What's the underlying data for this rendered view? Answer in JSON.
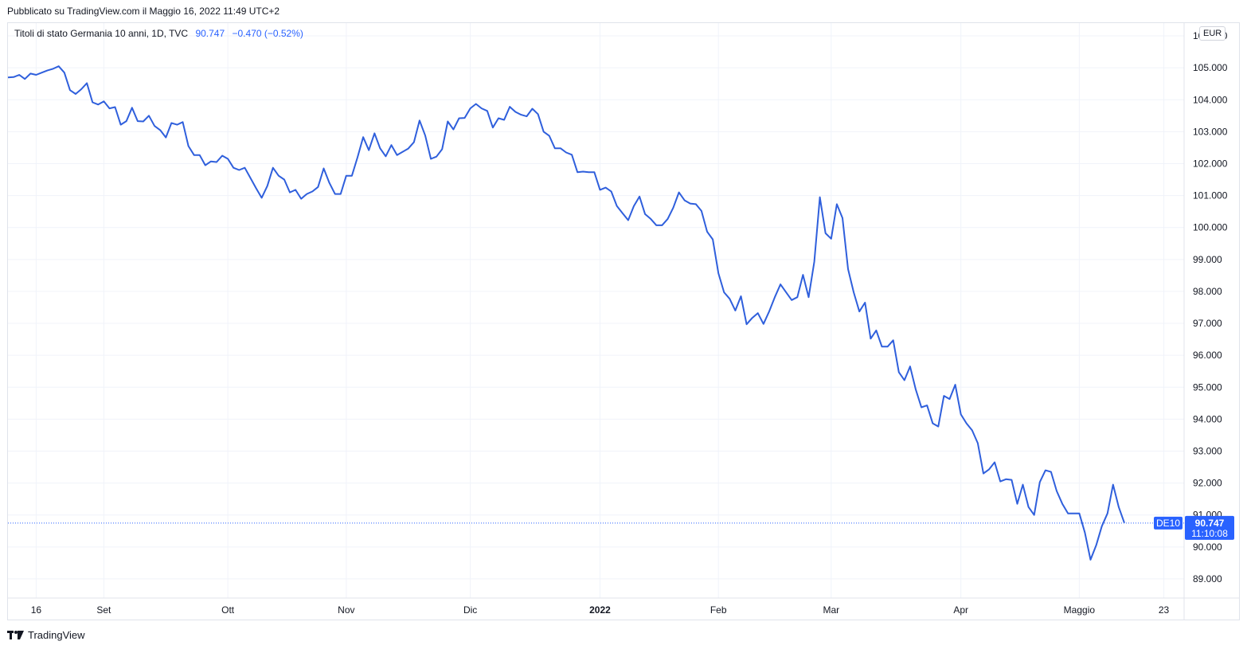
{
  "header": {
    "published": "Pubblicato su TradingView.com il Maggio 16, 2022 11:49 UTC+2"
  },
  "legend": {
    "title": "Titoli di stato Germania 10 anni, 1D, TVC",
    "last": "90.747",
    "change": "−0.470 (−0.52%)"
  },
  "currency": "EUR",
  "price_tag": {
    "symbol": "DE10",
    "price": "90.747",
    "countdown": "11:10:08"
  },
  "footer": {
    "brand": "TradingView"
  },
  "colors": {
    "line": "#2f5fdc",
    "tag": "#2962ff",
    "grid": "#f0f3fa"
  },
  "chart_data": {
    "type": "line",
    "title": "Titoli di stato Germania 10 anni, 1D, TVC",
    "xlabel": "",
    "ylabel": "",
    "ylim": [
      88.4,
      106.4
    ],
    "grid": true,
    "y_ticks": [
      "106.000",
      "105.000",
      "104.000",
      "103.000",
      "102.000",
      "101.000",
      "100.000",
      "99.000",
      "98.000",
      "97.000",
      "96.000",
      "95.000",
      "94.000",
      "93.000",
      "92.000",
      "91.000",
      "90.000",
      "89.000"
    ],
    "y_tick_values": [
      106,
      105,
      104,
      103,
      102,
      101,
      100,
      99,
      98,
      97,
      96,
      95,
      94,
      93,
      92,
      91,
      90,
      89
    ],
    "x_ticks": [
      {
        "label": "16",
        "date": "2021-08-16",
        "bold": false
      },
      {
        "label": "Set",
        "date": "2021-09-01",
        "bold": false
      },
      {
        "label": "Ott",
        "date": "2021-10-01",
        "bold": false
      },
      {
        "label": "Nov",
        "date": "2021-11-01",
        "bold": false
      },
      {
        "label": "Dic",
        "date": "2021-12-01",
        "bold": false
      },
      {
        "label": "2022",
        "date": "2022-01-03",
        "bold": true
      },
      {
        "label": "Feb",
        "date": "2022-02-01",
        "bold": false
      },
      {
        "label": "Mar",
        "date": "2022-03-01",
        "bold": false
      },
      {
        "label": "Apr",
        "date": "2022-04-01",
        "bold": false
      },
      {
        "label": "Maggio",
        "date": "2022-05-02",
        "bold": false
      },
      {
        "label": "23",
        "date": "2022-05-23",
        "bold": false
      }
    ],
    "x_range": [
      "2021-08-10",
      "2022-05-30"
    ],
    "last_value": 90.747,
    "series": [
      {
        "name": "DE10",
        "points": [
          [
            "2021-08-09",
            104.7
          ],
          [
            "2021-08-10",
            104.71
          ],
          [
            "2021-08-11",
            104.78
          ],
          [
            "2021-08-12",
            104.65
          ],
          [
            "2021-08-13",
            104.82
          ],
          [
            "2021-08-16",
            104.78
          ],
          [
            "2021-08-17",
            104.85
          ],
          [
            "2021-08-18",
            104.92
          ],
          [
            "2021-08-19",
            104.97
          ],
          [
            "2021-08-20",
            105.05
          ],
          [
            "2021-08-23",
            104.85
          ],
          [
            "2021-08-24",
            104.3
          ],
          [
            "2021-08-25",
            104.18
          ],
          [
            "2021-08-26",
            104.33
          ],
          [
            "2021-08-27",
            104.52
          ],
          [
            "2021-08-30",
            103.92
          ],
          [
            "2021-08-31",
            103.85
          ],
          [
            "2021-09-01",
            103.95
          ],
          [
            "2021-09-02",
            103.73
          ],
          [
            "2021-09-03",
            103.77
          ],
          [
            "2021-09-06",
            103.22
          ],
          [
            "2021-09-07",
            103.33
          ],
          [
            "2021-09-08",
            103.75
          ],
          [
            "2021-09-09",
            103.33
          ],
          [
            "2021-09-10",
            103.32
          ],
          [
            "2021-09-13",
            103.5
          ],
          [
            "2021-09-14",
            103.18
          ],
          [
            "2021-09-15",
            103.05
          ],
          [
            "2021-09-16",
            102.82
          ],
          [
            "2021-09-17",
            103.27
          ],
          [
            "2021-09-20",
            103.22
          ],
          [
            "2021-09-21",
            103.3
          ],
          [
            "2021-09-22",
            102.55
          ],
          [
            "2021-09-23",
            102.27
          ],
          [
            "2021-09-24",
            102.27
          ],
          [
            "2021-09-27",
            101.95
          ],
          [
            "2021-09-28",
            102.07
          ],
          [
            "2021-09-29",
            102.05
          ],
          [
            "2021-09-30",
            102.25
          ],
          [
            "2021-10-01",
            102.15
          ],
          [
            "2021-10-04",
            101.87
          ],
          [
            "2021-10-05",
            101.8
          ],
          [
            "2021-10-06",
            101.87
          ],
          [
            "2021-10-07",
            101.55
          ],
          [
            "2021-10-08",
            101.23
          ],
          [
            "2021-10-11",
            100.93
          ],
          [
            "2021-10-12",
            101.3
          ],
          [
            "2021-10-13",
            101.87
          ],
          [
            "2021-10-14",
            101.62
          ],
          [
            "2021-10-15",
            101.5
          ],
          [
            "2021-10-18",
            101.1
          ],
          [
            "2021-10-19",
            101.18
          ],
          [
            "2021-10-20",
            100.9
          ],
          [
            "2021-10-21",
            101.05
          ],
          [
            "2021-10-22",
            101.13
          ],
          [
            "2021-10-25",
            101.27
          ],
          [
            "2021-10-26",
            101.85
          ],
          [
            "2021-10-27",
            101.4
          ],
          [
            "2021-10-28",
            101.05
          ],
          [
            "2021-10-29",
            101.05
          ],
          [
            "2021-11-01",
            101.62
          ],
          [
            "2021-11-02",
            101.62
          ],
          [
            "2021-11-03",
            102.2
          ],
          [
            "2021-11-04",
            102.83
          ],
          [
            "2021-11-05",
            102.42
          ],
          [
            "2021-11-08",
            102.95
          ],
          [
            "2021-11-09",
            102.48
          ],
          [
            "2021-11-10",
            102.23
          ],
          [
            "2021-11-11",
            102.58
          ],
          [
            "2021-11-12",
            102.27
          ],
          [
            "2021-11-15",
            102.37
          ],
          [
            "2021-11-16",
            102.47
          ],
          [
            "2021-11-17",
            102.67
          ],
          [
            "2021-11-18",
            103.35
          ],
          [
            "2021-11-19",
            102.88
          ],
          [
            "2021-11-22",
            102.15
          ],
          [
            "2021-11-23",
            102.22
          ],
          [
            "2021-11-24",
            102.45
          ],
          [
            "2021-11-25",
            103.32
          ],
          [
            "2021-11-26",
            103.07
          ],
          [
            "2021-11-29",
            103.42
          ],
          [
            "2021-11-30",
            103.43
          ],
          [
            "2021-12-01",
            103.73
          ],
          [
            "2021-12-02",
            103.87
          ],
          [
            "2021-12-03",
            103.73
          ],
          [
            "2021-12-06",
            103.65
          ],
          [
            "2021-12-07",
            103.13
          ],
          [
            "2021-12-08",
            103.42
          ],
          [
            "2021-12-09",
            103.37
          ],
          [
            "2021-12-10",
            103.78
          ],
          [
            "2021-12-13",
            103.62
          ],
          [
            "2021-12-14",
            103.53
          ],
          [
            "2021-12-15",
            103.48
          ],
          [
            "2021-12-16",
            103.72
          ],
          [
            "2021-12-17",
            103.55
          ],
          [
            "2021-12-20",
            103.0
          ],
          [
            "2021-12-21",
            102.87
          ],
          [
            "2021-12-22",
            102.48
          ],
          [
            "2021-12-23",
            102.48
          ],
          [
            "2021-12-24",
            102.35
          ],
          [
            "2021-12-27",
            102.28
          ],
          [
            "2021-12-28",
            101.73
          ],
          [
            "2021-12-29",
            101.75
          ],
          [
            "2021-12-30",
            101.73
          ],
          [
            "2021-12-31",
            101.73
          ],
          [
            "2022-01-03",
            101.18
          ],
          [
            "2022-01-04",
            101.25
          ],
          [
            "2022-01-05",
            101.13
          ],
          [
            "2022-01-06",
            100.67
          ],
          [
            "2022-01-07",
            100.45
          ],
          [
            "2022-01-10",
            100.23
          ],
          [
            "2022-01-11",
            100.67
          ],
          [
            "2022-01-12",
            100.97
          ],
          [
            "2022-01-13",
            100.42
          ],
          [
            "2022-01-14",
            100.27
          ],
          [
            "2022-01-17",
            100.07
          ],
          [
            "2022-01-18",
            100.07
          ],
          [
            "2022-01-19",
            100.27
          ],
          [
            "2022-01-20",
            100.62
          ],
          [
            "2022-01-21",
            101.1
          ],
          [
            "2022-01-24",
            100.85
          ],
          [
            "2022-01-25",
            100.75
          ],
          [
            "2022-01-26",
            100.73
          ],
          [
            "2022-01-27",
            100.52
          ],
          [
            "2022-01-28",
            99.87
          ],
          [
            "2022-01-31",
            99.63
          ],
          [
            "2022-02-01",
            98.57
          ],
          [
            "2022-02-02",
            97.97
          ],
          [
            "2022-02-03",
            97.77
          ],
          [
            "2022-02-04",
            97.4
          ],
          [
            "2022-02-07",
            97.85
          ],
          [
            "2022-02-08",
            96.97
          ],
          [
            "2022-02-09",
            97.17
          ],
          [
            "2022-02-10",
            97.32
          ],
          [
            "2022-02-11",
            96.98
          ],
          [
            "2022-02-14",
            97.37
          ],
          [
            "2022-02-15",
            97.82
          ],
          [
            "2022-02-16",
            98.22
          ],
          [
            "2022-02-17",
            97.97
          ],
          [
            "2022-02-18",
            97.73
          ],
          [
            "2022-02-21",
            97.82
          ],
          [
            "2022-02-22",
            98.52
          ],
          [
            "2022-02-23",
            97.82
          ],
          [
            "2022-02-24",
            98.93
          ],
          [
            "2022-02-25",
            100.95
          ],
          [
            "2022-02-28",
            99.82
          ],
          [
            "2022-03-01",
            99.65
          ],
          [
            "2022-03-02",
            100.73
          ],
          [
            "2022-03-03",
            100.3
          ],
          [
            "2022-03-04",
            98.7
          ],
          [
            "2022-03-07",
            97.97
          ],
          [
            "2022-03-08",
            97.37
          ],
          [
            "2022-03-09",
            97.65
          ],
          [
            "2022-03-10",
            96.52
          ],
          [
            "2022-03-11",
            96.78
          ],
          [
            "2022-03-14",
            96.27
          ],
          [
            "2022-03-15",
            96.27
          ],
          [
            "2022-03-16",
            96.47
          ],
          [
            "2022-03-17",
            95.47
          ],
          [
            "2022-03-18",
            95.22
          ],
          [
            "2022-03-21",
            95.65
          ],
          [
            "2022-03-22",
            94.93
          ],
          [
            "2022-03-23",
            94.37
          ],
          [
            "2022-03-24",
            94.43
          ],
          [
            "2022-03-25",
            93.87
          ],
          [
            "2022-03-28",
            93.77
          ],
          [
            "2022-03-29",
            94.73
          ],
          [
            "2022-03-30",
            94.63
          ],
          [
            "2022-03-31",
            95.08
          ],
          [
            "2022-04-01",
            94.15
          ],
          [
            "2022-04-04",
            93.87
          ],
          [
            "2022-04-05",
            93.65
          ],
          [
            "2022-04-06",
            93.25
          ],
          [
            "2022-04-07",
            92.3
          ],
          [
            "2022-04-08",
            92.43
          ],
          [
            "2022-04-11",
            92.65
          ],
          [
            "2022-04-12",
            92.05
          ],
          [
            "2022-04-13",
            92.12
          ],
          [
            "2022-04-14",
            92.1
          ],
          [
            "2022-04-15",
            91.35
          ],
          [
            "2022-04-18",
            91.95
          ],
          [
            "2022-04-19",
            91.25
          ],
          [
            "2022-04-20",
            91.0
          ],
          [
            "2022-04-21",
            92.03
          ],
          [
            "2022-04-22",
            92.4
          ],
          [
            "2022-04-25",
            92.35
          ],
          [
            "2022-04-26",
            91.75
          ],
          [
            "2022-04-27",
            91.35
          ],
          [
            "2022-04-28",
            91.05
          ],
          [
            "2022-04-29",
            91.05
          ],
          [
            "2022-05-02",
            91.05
          ],
          [
            "2022-05-03",
            90.45
          ],
          [
            "2022-05-04",
            89.6
          ],
          [
            "2022-05-05",
            90.05
          ],
          [
            "2022-05-06",
            90.65
          ],
          [
            "2022-05-09",
            91.05
          ],
          [
            "2022-05-10",
            91.95
          ],
          [
            "2022-05-11",
            91.25
          ],
          [
            "2022-05-12",
            90.75
          ]
        ]
      }
    ]
  }
}
